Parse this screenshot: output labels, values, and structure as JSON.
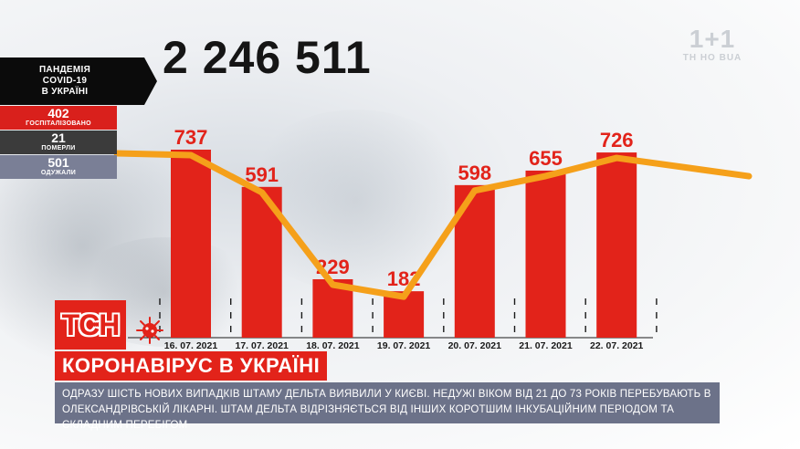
{
  "headline_total": "2 246 511",
  "stats": {
    "title_lines": [
      "ПАНДЕМІЯ",
      "COVID-19",
      "В УКРАЇНІ"
    ],
    "hospitalized": {
      "value": "402",
      "label": "ГОСПІТАЛІЗОВАНО"
    },
    "died": {
      "value": "21",
      "label": "ПОМЕРЛИ"
    },
    "recovered": {
      "value": "501",
      "label": "ОДУЖАЛИ"
    }
  },
  "chart_data": {
    "type": "bar",
    "categories": [
      "16. 07. 2021",
      "17. 07. 2021",
      "18. 07. 2021",
      "19. 07. 2021",
      "20. 07. 2021",
      "21. 07. 2021",
      "22. 07. 2021"
    ],
    "series": [
      {
        "values": [
          737,
          591,
          229,
          182,
          598,
          655,
          726
        ]
      }
    ],
    "overlay": "line through bar tops",
    "grid": false,
    "colors": {
      "bars": "#e2231a",
      "line": "#f5a01a",
      "labels": "#e2231a"
    }
  },
  "logo": "ТСН",
  "banner": "КОРОНАВІРУС В УКРАЇНІ",
  "ticker": "ОДРАЗУ ШІСТЬ НОВИХ ВИПАДКІВ ШТАМУ ДЕЛЬТА ВИЯВИЛИ У КИЄВІ. НЕДУЖІ ВІКОМ ВІД 21 ДО 73 РОКІВ ПЕРЕБУВАЮТЬ В ОЛЕКСАНДРІВСЬКІЙ ЛІКАРНІ. ШТАМ ДЕЛЬТА ВІДРІЗНЯЄТЬСЯ ВІД ІНШИХ КОРОТШИМ ІНКУБАЦІЙНИМ ПЕРІОДОМ ТА СКЛАДНИМ ПЕРЕБІГОМ",
  "watermark": {
    "main": "1+1",
    "sub": "TH HO BUA"
  },
  "icons": {
    "virus": "virus-icon"
  }
}
